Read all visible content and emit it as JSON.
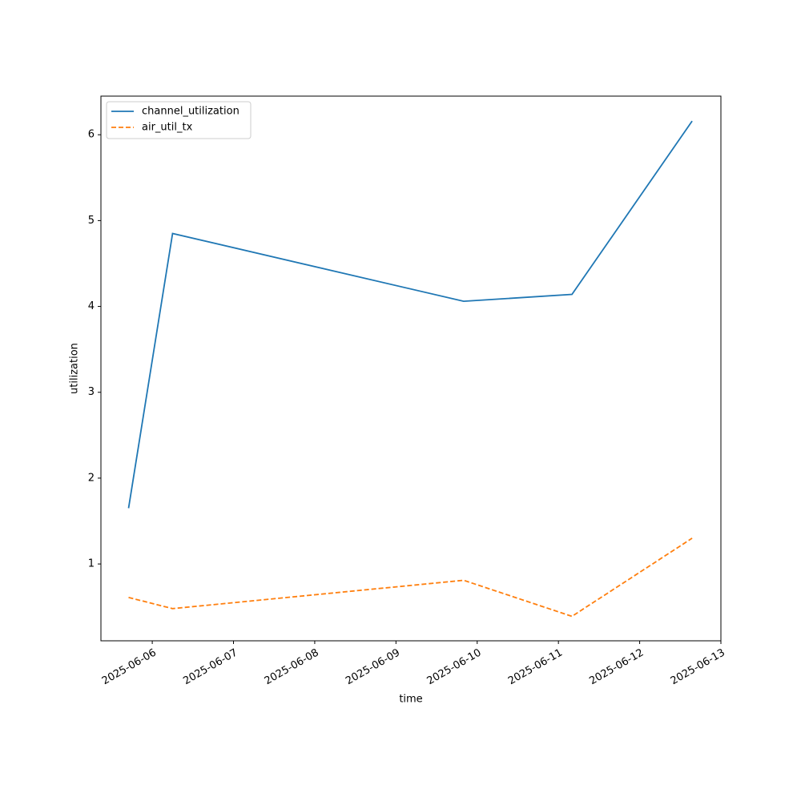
{
  "chart_data": {
    "type": "line",
    "xlabel": "time",
    "ylabel": "utilization",
    "x": [
      "2025-06-05T17:00",
      "2025-06-06T06:00",
      "2025-06-09T20:00",
      "2025-06-11T04:00",
      "2025-06-12T15:30"
    ],
    "series": [
      {
        "name": "channel_utilization",
        "color": "#1f77b4",
        "linestyle": "solid",
        "values": [
          1.65,
          4.85,
          4.06,
          4.14,
          6.16
        ]
      },
      {
        "name": "air_util_tx",
        "color": "#ff7f0e",
        "linestyle": "dashed",
        "values": [
          0.61,
          0.48,
          0.81,
          0.39,
          1.3
        ]
      }
    ],
    "xlim": [
      "2025-06-05T08:50",
      "2025-06-13T00:00"
    ],
    "xticks": [
      "2025-06-06",
      "2025-06-07",
      "2025-06-08",
      "2025-06-09",
      "2025-06-10",
      "2025-06-11",
      "2025-06-12",
      "2025-06-13"
    ],
    "ylim": [
      0.105,
      6.45
    ],
    "yticks": [
      1,
      2,
      3,
      4,
      5,
      6
    ],
    "grid": false,
    "legend": "upper left"
  }
}
